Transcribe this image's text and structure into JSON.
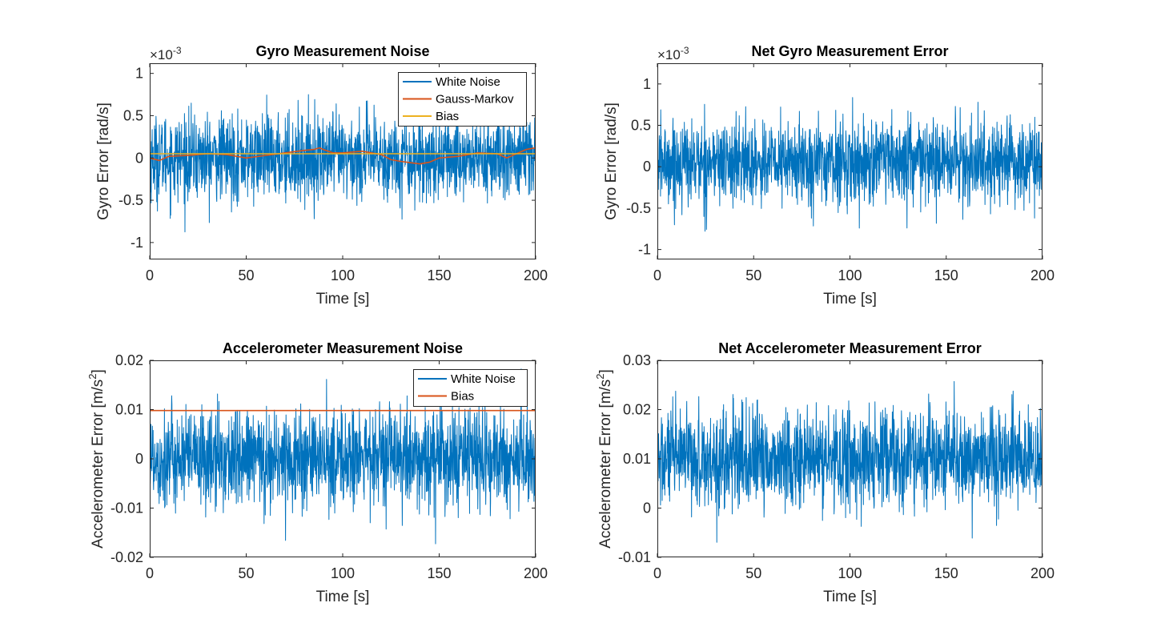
{
  "figure": {
    "background": "#ffffff"
  },
  "colors": {
    "blue": "#0072BD",
    "orange": "#D95319",
    "yellow": "#EDB120",
    "axis": "#262626"
  },
  "chart_data": [
    {
      "type": "line",
      "title": "Gyro Measurement Noise",
      "xlabel": "Time [s]",
      "ylabel": "Gyro Error [rad/s]",
      "exponent_label": "×10",
      "exponent_power": "-3",
      "xlim": [
        0,
        200
      ],
      "ylim": [
        -1.2,
        1.12
      ],
      "xticks": [
        0,
        50,
        100,
        150,
        200
      ],
      "xtick_labels": [
        "0",
        "50",
        "100",
        "150",
        "200"
      ],
      "yticks": [
        -1,
        -0.5,
        0,
        0.5,
        1
      ],
      "ytick_labels": [
        "-1",
        "-0.5",
        "0",
        "0.5",
        "1"
      ],
      "legend_position": "top-right",
      "series": [
        {
          "name": "White Noise",
          "kind": "noise",
          "color": "#0072BD",
          "sigma": 0.25,
          "spike_max": 1.2
        },
        {
          "name": "Gauss-Markov",
          "kind": "line",
          "color": "#D95319",
          "x": [
            0,
            5,
            10,
            20,
            30,
            40,
            50,
            60,
            70,
            80,
            85,
            88,
            90,
            95,
            100,
            110,
            120,
            125,
            130,
            140,
            145,
            150,
            160,
            170,
            180,
            185,
            190,
            195,
            200
          ],
          "y": [
            0.0,
            -0.03,
            0.02,
            0.03,
            0.05,
            0.04,
            0.0,
            0.03,
            0.06,
            0.09,
            0.1,
            0.12,
            0.1,
            0.06,
            0.06,
            0.08,
            0.04,
            -0.02,
            -0.04,
            -0.07,
            -0.05,
            0.0,
            0.02,
            0.06,
            0.05,
            0.0,
            0.05,
            0.1,
            0.12
          ]
        },
        {
          "name": "Bias",
          "kind": "line",
          "color": "#EDB120",
          "x": [
            0,
            200
          ],
          "y": [
            0.05,
            0.05
          ]
        }
      ]
    },
    {
      "type": "line",
      "title": "Net Gyro Measurement Error",
      "xlabel": "Time [s]",
      "ylabel": "Gyro Error [rad/s]",
      "exponent_label": "×10",
      "exponent_power": "-3",
      "xlim": [
        0,
        200
      ],
      "ylim": [
        -1.12,
        1.25
      ],
      "xticks": [
        0,
        50,
        100,
        150,
        200
      ],
      "xtick_labels": [
        "0",
        "50",
        "100",
        "150",
        "200"
      ],
      "yticks": [
        -1,
        -0.5,
        0,
        0.5,
        1
      ],
      "ytick_labels": [
        "-1",
        "-0.5",
        "0",
        "0.5",
        "1"
      ],
      "series": [
        {
          "name": "",
          "kind": "noise",
          "color": "#0072BD",
          "center": 0.05,
          "sigma": 0.25,
          "spike_max": 1.25
        }
      ]
    },
    {
      "type": "line",
      "title": "Accelerometer Measurement Noise",
      "xlabel": "Time [s]",
      "ylabel": "Accelerometer Error [m/s",
      "ylabel_sup": "2",
      "ylabel_end": "]",
      "xlim": [
        0,
        200
      ],
      "ylim": [
        -0.02,
        0.02
      ],
      "xticks": [
        0,
        50,
        100,
        150,
        200
      ],
      "xtick_labels": [
        "0",
        "50",
        "100",
        "150",
        "200"
      ],
      "yticks": [
        -0.02,
        -0.01,
        0,
        0.01,
        0.02
      ],
      "ytick_labels": [
        "-0.02",
        "-0.01",
        "0",
        "0.01",
        "0.02"
      ],
      "legend_position": "top-right",
      "series": [
        {
          "name": "White Noise",
          "kind": "noise",
          "color": "#0072BD",
          "center": 0,
          "sigma": 0.005,
          "spike_max": 0.0185
        },
        {
          "name": "Bias",
          "kind": "line",
          "color": "#D95319",
          "x": [
            0,
            200
          ],
          "y": [
            0.0098,
            0.0098
          ]
        }
      ]
    },
    {
      "type": "line",
      "title": "Net Accelerometer Measurement Error",
      "xlabel": "Time [s]",
      "ylabel": "Accelerometer Error [m/s",
      "ylabel_sup": "2",
      "ylabel_end": "]",
      "xlim": [
        0,
        200
      ],
      "ylim": [
        -0.01,
        0.03
      ],
      "xticks": [
        0,
        50,
        100,
        150,
        200
      ],
      "xtick_labels": [
        "0",
        "50",
        "100",
        "150",
        "200"
      ],
      "yticks": [
        -0.01,
        0,
        0.01,
        0.02,
        0.03
      ],
      "ytick_labels": [
        "-0.01",
        "0",
        "0.01",
        "0.02",
        "0.03"
      ],
      "series": [
        {
          "name": "",
          "kind": "noise",
          "color": "#0072BD",
          "center": 0.0098,
          "sigma": 0.005,
          "spike_max": 0.0285
        }
      ]
    }
  ]
}
